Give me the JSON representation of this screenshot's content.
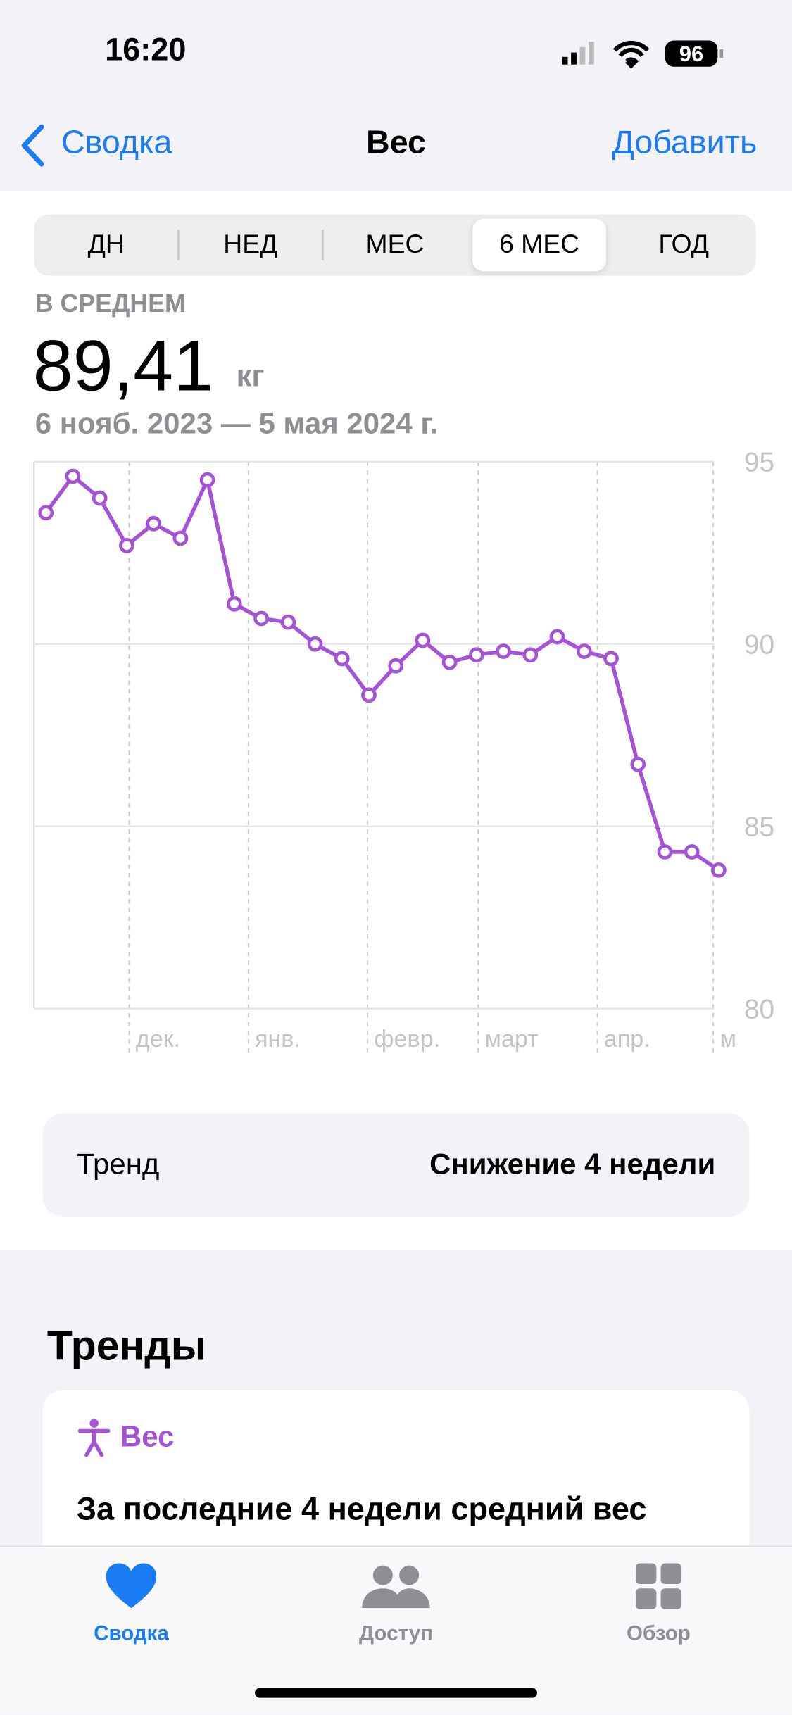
{
  "status": {
    "time": "16:20",
    "battery": "96"
  },
  "nav": {
    "back": "Сводка",
    "title": "Вес",
    "action": "Добавить"
  },
  "segments": [
    "ДН",
    "НЕД",
    "МЕС",
    "6 МЕС",
    "ГОД"
  ],
  "summary": {
    "label": "В СРЕДНЕМ",
    "value": "89,41",
    "unit": "кг",
    "range": "6 нояб. 2023 — 5 мая 2024 г."
  },
  "chart_data": {
    "type": "line",
    "categories": [
      null,
      null,
      null,
      null,
      null,
      null,
      null,
      null,
      null,
      null,
      null,
      null,
      null,
      null,
      null,
      null,
      null,
      null,
      null,
      null,
      null,
      null,
      null,
      null,
      null,
      null
    ],
    "series": [
      {
        "name": "Вес",
        "color": "#a552d6",
        "values": [
          93.6,
          94.6,
          94.0,
          92.7,
          93.3,
          92.9,
          94.5,
          91.1,
          90.7,
          90.6,
          90.0,
          89.6,
          88.6,
          89.4,
          90.1,
          89.5,
          89.7,
          89.8,
          89.7,
          90.2,
          89.8,
          89.6,
          86.7,
          84.3,
          84.3,
          83.8
        ]
      }
    ],
    "x_labels": [
      "дек.",
      "янв.",
      "февр.",
      "март",
      "апр.",
      "м"
    ],
    "ylim": [
      80,
      95
    ],
    "yticks": [
      80,
      85,
      90,
      95
    ],
    "grid": true
  },
  "trend": {
    "label": "Тренд",
    "value": "Снижение 4 недели"
  },
  "section": {
    "title": "Тренды",
    "card_title": "Вес",
    "card_text": "За последние 4 недели средний вес"
  },
  "tabs": [
    "Сводка",
    "Доступ",
    "Обзор"
  ]
}
